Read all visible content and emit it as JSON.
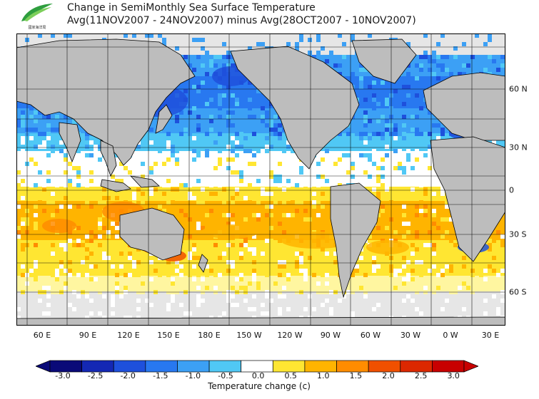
{
  "title": {
    "line1": "Change in SemiMonthly Sea Surface Temperature",
    "line2": "Avg(11NOV2007 - 24NOV2007) minus Avg(28OCT2007 - 10NOV2007)"
  },
  "logo": {
    "name": "agency-logo",
    "text": "國家海洋局"
  },
  "axes": {
    "lon_labels": [
      "60 E",
      "90 E",
      "120 E",
      "150 E",
      "180 E",
      "150 W",
      "120 W",
      "90 W",
      "60 W",
      "30 W",
      "0 W",
      "30 E"
    ],
    "lat_labels": [
      "60 N",
      "30 N",
      "0",
      "30 S",
      "60 S"
    ]
  },
  "colorbar": {
    "ticks": [
      "-3.0",
      "-2.5",
      "-2.0",
      "-1.5",
      "-1.0",
      "-0.5",
      "0.0",
      "0.5",
      "1.0",
      "1.5",
      "2.0",
      "2.5",
      "3.0"
    ],
    "colors": [
      "#0a0a78",
      "#1428b4",
      "#1e50dc",
      "#2878f0",
      "#3ca0f5",
      "#50c8f5",
      "#ffffff",
      "#ffe632",
      "#ffb400",
      "#ff8c00",
      "#f05000",
      "#dc2800",
      "#c80000"
    ],
    "label": "Temperature change  (c)"
  },
  "palette": {
    "land": "#bdbdbd",
    "ice": "#e6e6e6",
    "ocean_neutral": "#ffffff",
    "outline": "#000000",
    "grid": "#000000"
  }
}
